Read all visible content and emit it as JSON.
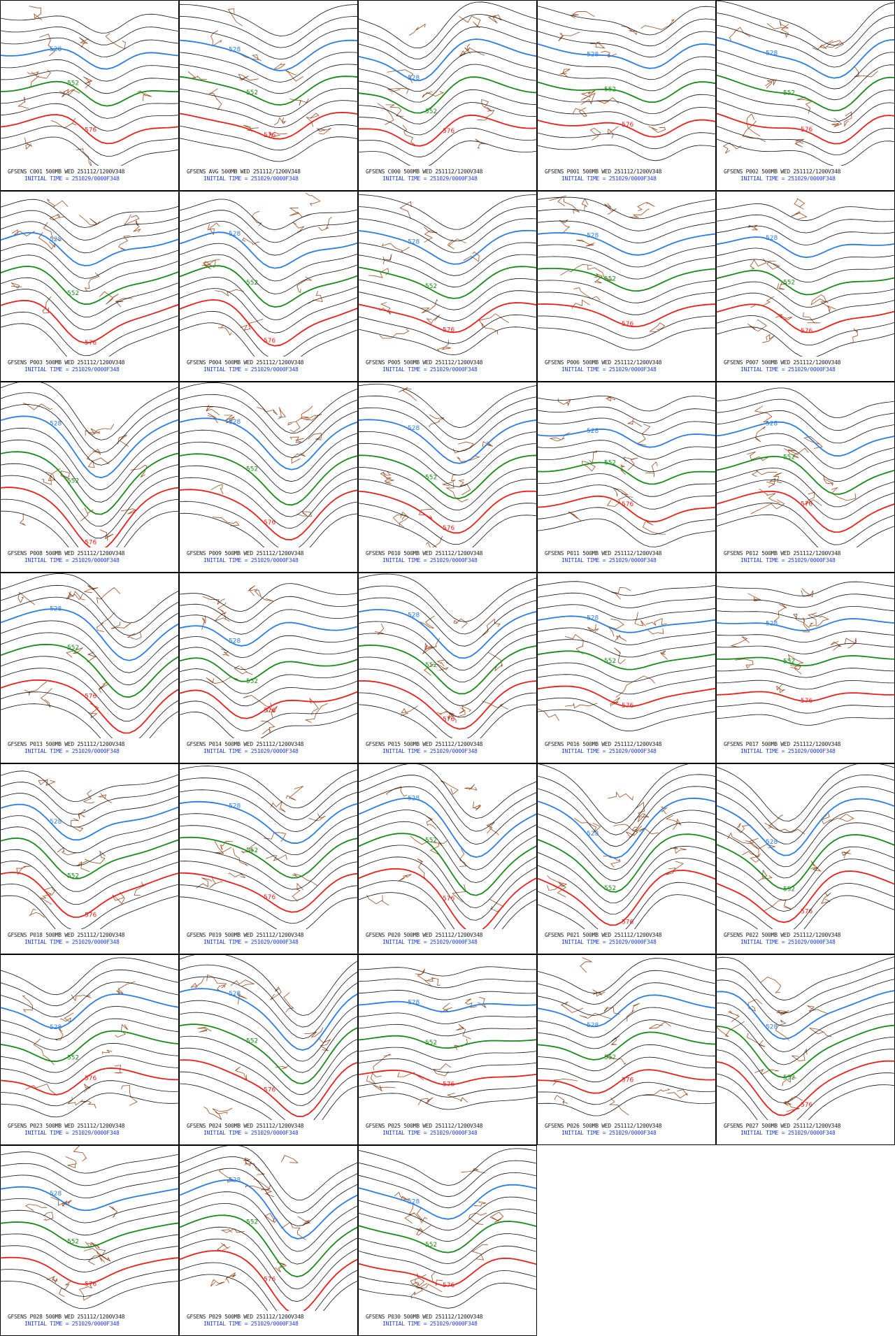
{
  "panels": [
    {
      "line1": "GFSENS C001 500MB WED 251112/1200V348",
      "line2": "INITIAL TIME = 251029/0000F348",
      "contour_labels": [
        "528",
        "552",
        "576"
      ]
    },
    {
      "line1": "GFSENS AVG 500MB WED 251112/1200V348",
      "line2": "INITIAL TIME = 251029/0000F348",
      "contour_labels": [
        "528",
        "552",
        "576"
      ]
    },
    {
      "line1": "GFSENS C000 500MB WED 251112/1200V348",
      "line2": "INITIAL TIME = 251029/0000F348",
      "contour_labels": [
        "528",
        "552",
        "576"
      ]
    },
    {
      "line1": "GFSENS P001 500MB WED 251112/1200V348",
      "line2": "INITIAL TIME = 251029/0000F348",
      "contour_labels": [
        "528",
        "552",
        "576"
      ]
    },
    {
      "line1": "GFSENS P002 500MB WED 251112/1200V348",
      "line2": "INITIAL TIME = 251029/0000F348",
      "contour_labels": [
        "528",
        "552",
        "576"
      ]
    },
    {
      "line1": "GFSENS P003 500MB WED 251112/1200V348",
      "line2": "INITIAL TIME = 251029/0000F348",
      "contour_labels": [
        "528",
        "552",
        "576"
      ]
    },
    {
      "line1": "GFSENS P004 500MB WED 251112/1200V348",
      "line2": "INITIAL TIME = 251029/0000F348",
      "contour_labels": [
        "528",
        "552",
        "576"
      ]
    },
    {
      "line1": "GFSENS P005 500MB WED 251112/1200V348",
      "line2": "INITIAL TIME = 251029/0000F348",
      "contour_labels": [
        "528",
        "552",
        "576"
      ]
    },
    {
      "line1": "GFSENS P006 500MB WED 251112/1200V348",
      "line2": "INITIAL TIME = 251029/0000F348",
      "contour_labels": [
        "528",
        "552",
        "576"
      ]
    },
    {
      "line1": "GFSENS P007 500MB WED 251112/1200V348",
      "line2": "INITIAL TIME = 251029/0000F348",
      "contour_labels": [
        "528",
        "552",
        "576"
      ]
    },
    {
      "line1": "GFSENS P008 500MB WED 251112/1200V348",
      "line2": "INITIAL TIME = 251029/0000F348",
      "contour_labels": [
        "528",
        "552",
        "576"
      ]
    },
    {
      "line1": "GFSENS P009 500MB WED 251112/1200V348",
      "line2": "INITIAL TIME = 251029/0000F348",
      "contour_labels": [
        "528",
        "552",
        "576"
      ]
    },
    {
      "line1": "GFSENS P010 500MB WED 251112/1200V348",
      "line2": "INITIAL TIME = 251029/0000F348",
      "contour_labels": [
        "528",
        "552",
        "576"
      ]
    },
    {
      "line1": "GFSENS P011 500MB WED 251112/1200V348",
      "line2": "INITIAL TIME = 251029/0000F348",
      "contour_labels": [
        "528",
        "552",
        "576"
      ]
    },
    {
      "line1": "GFSENS P012 500MB WED 251112/1200V348",
      "line2": "INITIAL TIME = 251029/0000F348",
      "contour_labels": [
        "528",
        "552",
        "576"
      ]
    },
    {
      "line1": "GFSENS P013 500MB WED 251112/1200V348",
      "line2": "INITIAL TIME = 251029/0000F348",
      "contour_labels": [
        "528",
        "552",
        "576"
      ]
    },
    {
      "line1": "GFSENS P014 500MB WED 251112/1200V348",
      "line2": "INITIAL TIME = 251029/0000F348",
      "contour_labels": [
        "528",
        "552",
        "576"
      ]
    },
    {
      "line1": "GFSENS P015 500MB WED 251112/1200V348",
      "line2": "INITIAL TIME = 251029/0000F348",
      "contour_labels": [
        "528",
        "552",
        "576"
      ]
    },
    {
      "line1": "GFSENS P016 500MB WED 251112/1200V348",
      "line2": "INITIAL TIME = 251029/0000F348",
      "contour_labels": [
        "528",
        "552",
        "576"
      ]
    },
    {
      "line1": "GFSENS P017 500MB WED 251112/1200V348",
      "line2": "INITIAL TIME = 251029/0000F348",
      "contour_labels": [
        "528",
        "552",
        "576"
      ]
    },
    {
      "line1": "GFSENS P018 500MB WED 251112/1200V348",
      "line2": "INITIAL TIME = 251029/0000F348",
      "contour_labels": [
        "528",
        "552",
        "576"
      ]
    },
    {
      "line1": "GFSENS P019 500MB WED 251112/1200V348",
      "line2": "INITIAL TIME = 251029/0000F348",
      "contour_labels": [
        "528",
        "552",
        "576"
      ]
    },
    {
      "line1": "GFSENS P020 500MB WED 251112/1200V348",
      "line2": "INITIAL TIME = 251029/0000F348",
      "contour_labels": [
        "528",
        "552",
        "576"
      ]
    },
    {
      "line1": "GFSENS P021 500MB WED 251112/1200V348",
      "line2": "INITIAL TIME = 251029/0000F348",
      "contour_labels": [
        "528",
        "552",
        "576"
      ]
    },
    {
      "line1": "GFSENS P022 500MB WED 251112/1200V348",
      "line2": "INITIAL TIME = 251029/0000F348",
      "contour_labels": [
        "528",
        "552",
        "576"
      ]
    },
    {
      "line1": "GFSENS P023 500MB WED 251112/1200V348",
      "line2": "INITIAL TIME = 251029/0000F348",
      "contour_labels": [
        "528",
        "552",
        "576"
      ]
    },
    {
      "line1": "GFSENS P024 500MB WED 251112/1200V348",
      "line2": "INITIAL TIME = 251029/0000F348",
      "contour_labels": [
        "528",
        "552",
        "576"
      ]
    },
    {
      "line1": "GFSENS P025 500MB WED 251112/1200V348",
      "line2": "INITIAL TIME = 251029/0000F348",
      "contour_labels": [
        "528",
        "552",
        "576"
      ]
    },
    {
      "line1": "GFSENS P026 500MB WED 251112/1200V348",
      "line2": "INITIAL TIME = 251029/0000F348",
      "contour_labels": [
        "528",
        "552",
        "576"
      ]
    },
    {
      "line1": "GFSENS P027 500MB WED 251112/1200V348",
      "line2": "INITIAL TIME = 251029/0000F348",
      "contour_labels": [
        "528",
        "552",
        "576"
      ]
    },
    {
      "line1": "GFSENS P028 500MB WED 251112/1200V348",
      "line2": "INITIAL TIME = 251029/0000F348",
      "contour_labels": [
        "528",
        "552",
        "576"
      ]
    },
    {
      "line1": "GFSENS P029 500MB WED 251112/1200V348",
      "line2": "INITIAL TIME = 251029/0000F348",
      "contour_labels": [
        "528",
        "552",
        "576"
      ]
    },
    {
      "line1": "GFSENS P030 500MB WED 251112/1200V348",
      "line2": "INITIAL TIME = 251029/0000F348",
      "contour_labels": [
        "528",
        "552",
        "576"
      ]
    }
  ]
}
